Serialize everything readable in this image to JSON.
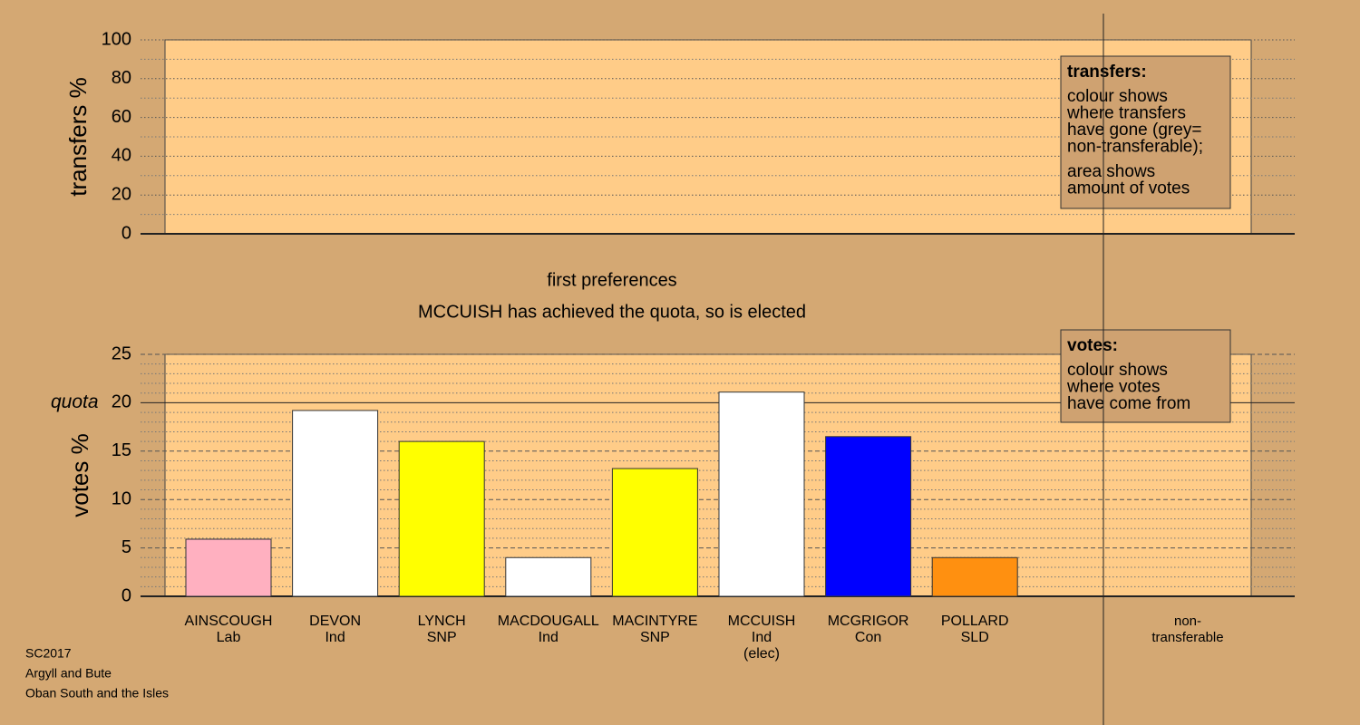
{
  "chart_data": [
    {
      "type": "bar",
      "ylabel": "transfers %",
      "ylim": [
        0,
        100
      ],
      "yticks": [
        0,
        20,
        40,
        60,
        80,
        100
      ],
      "minor_yticks": [
        10,
        30,
        50,
        70,
        90
      ],
      "grid": true,
      "legend_box": {
        "title": "transfers:",
        "lines": [
          [
            "colour shows",
            "where transfers",
            "have gone (grey=",
            "non-transferable);"
          ],
          [
            "area shows",
            "amount of votes"
          ]
        ]
      }
    },
    {
      "type": "bar",
      "title": "first preferences",
      "subtitle": "MCCUISH has achieved the quota, so is elected",
      "ylabel": "votes %",
      "categories": [
        [
          "AINSCOUGH",
          "Lab"
        ],
        [
          "DEVON",
          "Ind"
        ],
        [
          "LYNCH",
          "SNP"
        ],
        [
          "MACDOUGALL",
          "Ind"
        ],
        [
          "MACINTYRE",
          "SNP"
        ],
        [
          "MCCUISH",
          "Ind",
          "(elec)"
        ],
        [
          "MCGRIGOR",
          "Con"
        ],
        [
          "POLLARD",
          "SLD"
        ],
        [
          "non-",
          "transferable"
        ]
      ],
      "values": [
        5.9,
        19.2,
        16.0,
        4.0,
        13.2,
        21.1,
        16.5,
        4.0,
        0
      ],
      "colors": [
        "#ffb0c0",
        "#ffffff",
        "#ffff00",
        "#ffffff",
        "#ffff00",
        "#ffffff",
        "#0000ff",
        "#ff9010",
        "#a0a0a0"
      ],
      "ylim": [
        0,
        25
      ],
      "yticks": [
        0,
        5,
        10,
        15,
        20,
        25
      ],
      "minor_yticks": [
        1,
        2,
        3,
        4,
        6,
        7,
        8,
        9,
        11,
        12,
        13,
        14,
        16,
        17,
        18,
        19,
        21,
        22,
        23,
        24
      ],
      "grid": true,
      "reference_line": {
        "value": 20,
        "label": "quota"
      },
      "legend_box": {
        "title": "votes:",
        "lines": [
          [
            "colour shows",
            "where votes",
            "have come from"
          ]
        ]
      }
    },
    {
      "type": "footer",
      "lines": [
        "SC2017",
        "Argyll and Bute",
        "Oban South and the Isles"
      ]
    }
  ]
}
